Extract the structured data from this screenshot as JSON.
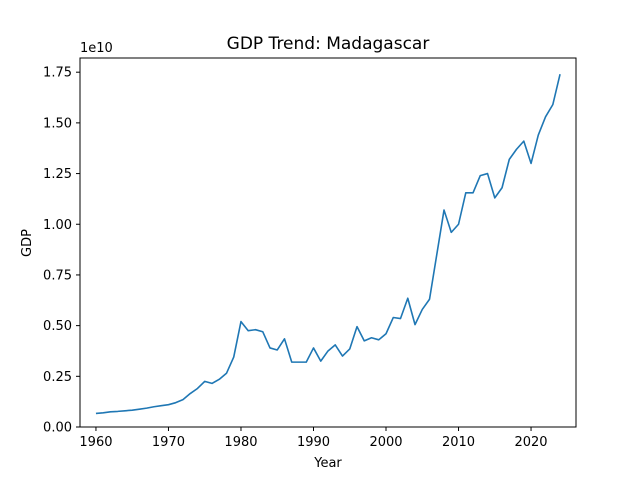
{
  "chart_data": {
    "type": "line",
    "title": "GDP Trend: Madagascar",
    "xlabel": "Year",
    "ylabel": "GDP",
    "y_offset_label": "1e10",
    "xlim": [
      1957.8,
      2026.2
    ],
    "ylim": [
      -0.0,
      18200000000.0
    ],
    "x_ticks": [
      1960,
      1970,
      1980,
      1990,
      2000,
      2010,
      2020
    ],
    "x_tick_labels": [
      "1960",
      "1970",
      "1980",
      "1990",
      "2000",
      "2010",
      "2020"
    ],
    "y_ticks": [
      0,
      2500000000.0,
      5000000000.0,
      7500000000.0,
      10000000000.0,
      12500000000.0,
      15000000000.0,
      17500000000.0
    ],
    "y_tick_labels": [
      "0.00",
      "0.25",
      "0.50",
      "0.75",
      "1.00",
      "1.25",
      "1.50",
      "1.75"
    ],
    "grid": false,
    "line_color": "#1f77b4",
    "series": [
      {
        "x": [
          1960,
          1961,
          1962,
          1963,
          1964,
          1965,
          1966,
          1967,
          1968,
          1969,
          1970,
          1971,
          1972,
          1973,
          1974,
          1975,
          1976,
          1977,
          1978,
          1979,
          1980,
          1981,
          1982,
          1983,
          1984,
          1985,
          1986,
          1987,
          1988,
          1989,
          1990,
          1991,
          1992,
          1993,
          1994,
          1995,
          1996,
          1997,
          1998,
          1999,
          2000,
          2001,
          2002,
          2003,
          2004,
          2005,
          2006,
          2007,
          2008,
          2009,
          2010,
          2011,
          2012,
          2013,
          2014,
          2015,
          2016,
          2017,
          2018,
          2019,
          2020,
          2021,
          2022,
          2023,
          2024
        ],
        "values": [
          670000000.0,
          700000000.0,
          750000000.0,
          770000000.0,
          800000000.0,
          830000000.0,
          880000000.0,
          930000000.0,
          1000000000.0,
          1050000000.0,
          1100000000.0,
          1200000000.0,
          1350000000.0,
          1650000000.0,
          1900000000.0,
          2250000000.0,
          2150000000.0,
          2350000000.0,
          2650000000.0,
          3450000000.0,
          5200000000.0,
          4750000000.0,
          4800000000.0,
          4700000000.0,
          3900000000.0,
          3800000000.0,
          4350000000.0,
          3200000000.0,
          3200000000.0,
          3200000000.0,
          3900000000.0,
          3250000000.0,
          3750000000.0,
          4050000000.0,
          3500000000.0,
          3850000000.0,
          4950000000.0,
          4250000000.0,
          4400000000.0,
          4300000000.0,
          4600000000.0,
          5400000000.0,
          5350000000.0,
          6350000000.0,
          5050000000.0,
          5800000000.0,
          6300000000.0,
          8500000000.0,
          10700000000.0,
          9600000000.0,
          10000000000.0,
          11550000000.0,
          11550000000.0,
          12400000000.0,
          12500000000.0,
          11300000000.0,
          11800000000.0,
          13200000000.0,
          13700000000.0,
          14100000000.0,
          13000000000.0,
          14400000000.0,
          15300000000.0,
          15900000000.0,
          17400000000.0
        ]
      }
    ]
  }
}
